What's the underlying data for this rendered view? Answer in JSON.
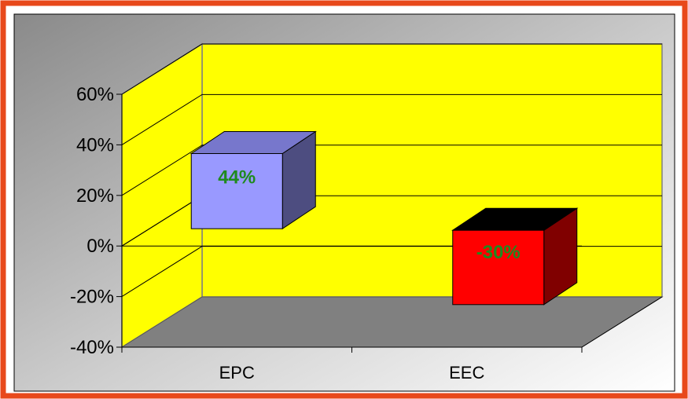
{
  "chart_data": {
    "type": "bar",
    "categories": [
      "EPC",
      "EEC"
    ],
    "values": [
      44,
      -30
    ],
    "data_labels": [
      "44%",
      "-30%"
    ],
    "y_tick_labels": [
      "60%",
      "40%",
      "20%",
      "0%",
      "-20%",
      "-40%"
    ],
    "ylim": [
      -40,
      60
    ],
    "grid": true,
    "legend": "none",
    "three_d": true,
    "colors": {
      "frame_border": "#e8491b",
      "back_wall": "#ffff00",
      "floor": "#808080",
      "epc_front": "#9999ff",
      "epc_top": "#7777cc",
      "epc_side": "#4d4d80",
      "eec_front": "#ff0000",
      "eec_top": "#000000",
      "eec_side": "#800000",
      "label_color": "#1f8a1f"
    }
  }
}
